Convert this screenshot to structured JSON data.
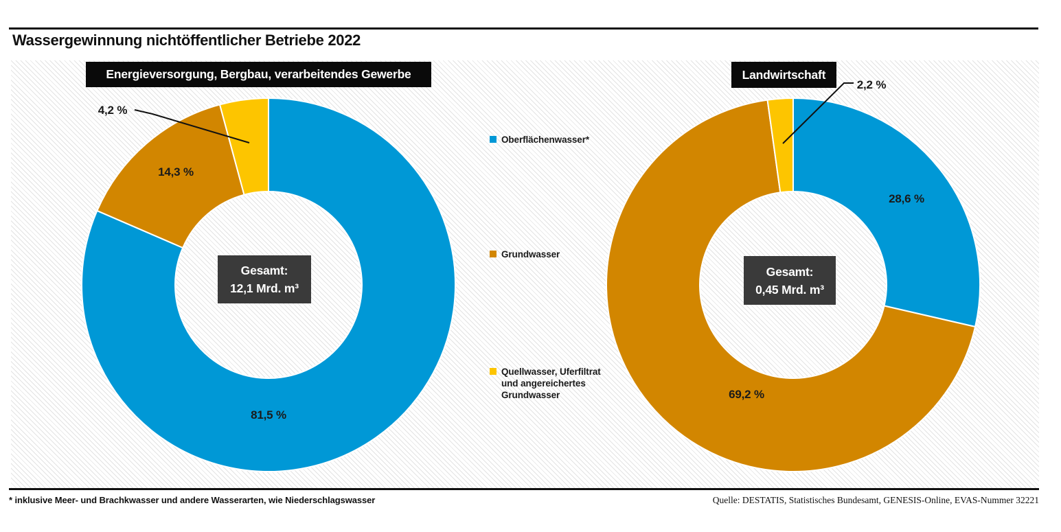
{
  "title": "Wassergewinnung nichtöffentlicher Betriebe 2022",
  "footnote": "* inklusive Meer- und Brachkwasser und andere Wasserarten, wie Niederschlagswasser",
  "source": "Quelle: DESTATIS, Statistisches Bundesamt, GENESIS-Online, EVAS-Nummer 32221",
  "colors": {
    "surface_water": "#0098d6",
    "groundwater": "#d28600",
    "spring_water": "#fdc500",
    "center_box": "#3a3a3a",
    "header_band": "#0a0a0a",
    "label_text": "#1a1a1a"
  },
  "legend": {
    "items": [
      {
        "label": "Oberflächenwasser*",
        "color": "#0098d6",
        "lines": [
          "Oberflächenwasser*"
        ]
      },
      {
        "label": "Grundwasser",
        "color": "#d28600",
        "lines": [
          "Grundwasser"
        ]
      },
      {
        "label": "Quellwasser, Uferfiltrat und angereichertes Grundwasser",
        "color": "#fdc500",
        "lines": [
          "Quellwasser, Uferfiltrat",
          "und angereichertes",
          "Grundwasser"
        ]
      }
    ]
  },
  "chart_data": [
    {
      "type": "pie",
      "subtype": "donut",
      "title": "Energieversorgung, Bergbau, verarbeitendes Gewerbe",
      "center_label": [
        "Gesamt:",
        "12,1 Mrd. m³"
      ],
      "unit": "%",
      "start_angle_deg": 0,
      "direction": "clockwise",
      "categories": [
        "Oberflächenwasser*",
        "Grundwasser",
        "Quellwasser, Uferfiltrat und angereichertes Grundwasser"
      ],
      "values": [
        81.5,
        14.3,
        4.2
      ],
      "value_labels": [
        "81,5 %",
        "14,3 %",
        "4,2 %"
      ],
      "colors": [
        "#0098d6",
        "#d28600",
        "#fdc500"
      ]
    },
    {
      "type": "pie",
      "subtype": "donut",
      "title": "Landwirtschaft",
      "center_label": [
        "Gesamt:",
        "0,45 Mrd. m³"
      ],
      "unit": "%",
      "start_angle_deg": 0,
      "direction": "clockwise",
      "categories": [
        "Oberflächenwasser*",
        "Grundwasser",
        "Quellwasser, Uferfiltrat und angereichertes Grundwasser"
      ],
      "values": [
        28.6,
        69.2,
        2.2
      ],
      "value_labels": [
        "28,6 %",
        "69,2 %",
        "2,2 %"
      ],
      "colors": [
        "#0098d6",
        "#d28600",
        "#fdc500"
      ]
    }
  ]
}
